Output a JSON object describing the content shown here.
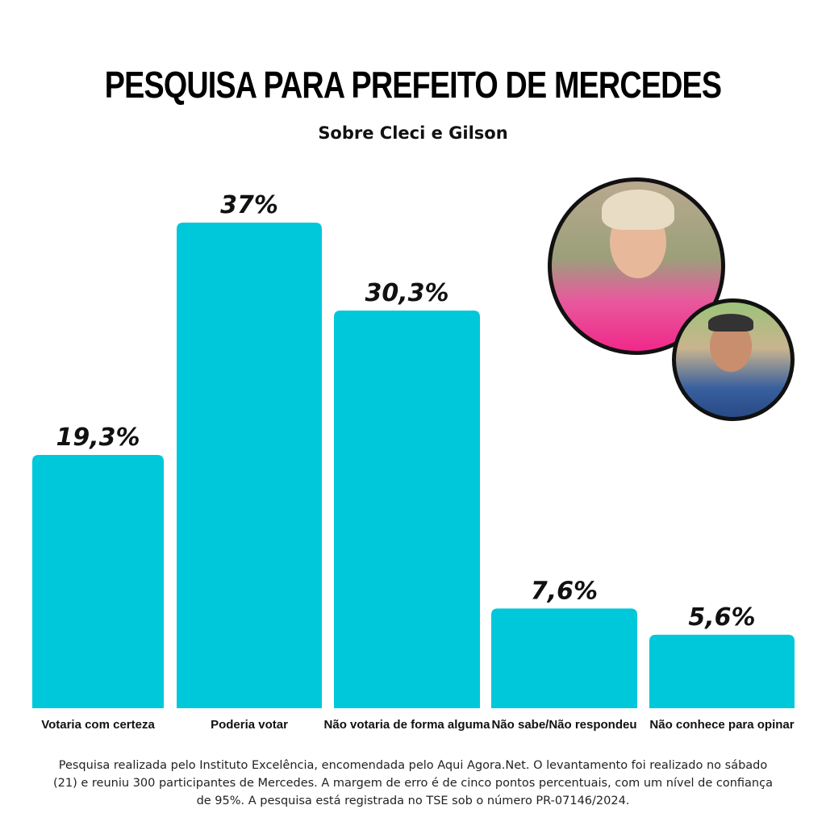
{
  "title": "PESQUISA PARA PREFEITO DE MERCEDES",
  "subtitle": "Sobre Cleci e Gilson",
  "footnote": "Pesquisa realizada pelo Instituto Excelência, encomendada pelo Aqui Agora.Net. O levantamento foi realizado no sábado (21) e reuniu 300 participantes de Mercedes. A margem de erro é de cinco pontos percentuais, com um nível de confiança de 95%. A pesquisa está registrada no TSE sob o número PR-07146/2024.",
  "colors": {
    "bar": "#00c8db",
    "text": "#111111"
  },
  "chart_data": {
    "type": "bar",
    "title": "PESQUISA PARA PREFEITO DE MERCEDES",
    "subtitle": "Sobre Cleci e Gilson",
    "categories": [
      "Votaria com certeza",
      "Poderia votar",
      "Não votaria de forma alguma",
      "Não sabe/Não respondeu",
      "Não conhece para opinar"
    ],
    "values": [
      19.3,
      37,
      30.3,
      7.6,
      5.6
    ],
    "value_labels": [
      "19,3%",
      "37%",
      "30,3%",
      "7,6%",
      "5,6%"
    ],
    "ylim": [
      0,
      37
    ],
    "grid": false,
    "legend": "none"
  }
}
